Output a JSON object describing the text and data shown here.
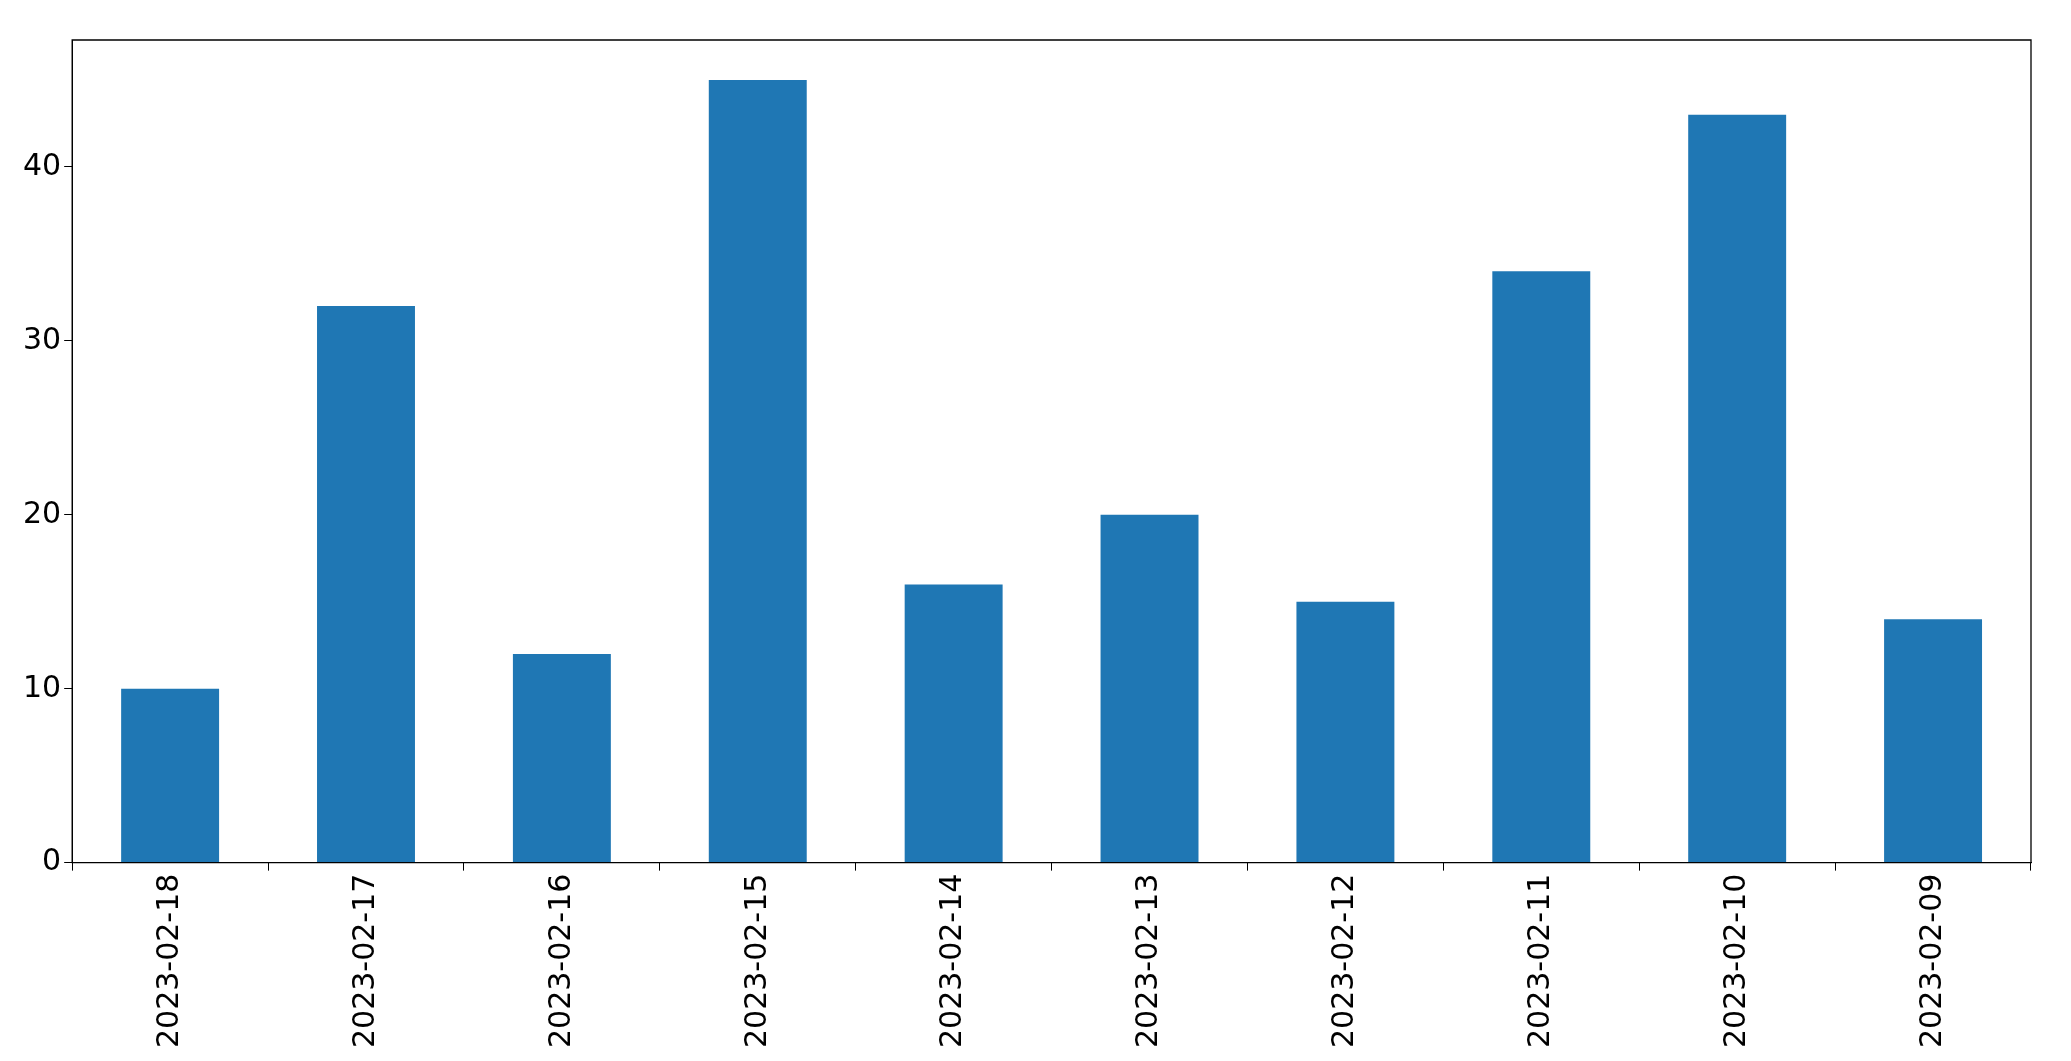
{
  "chart_data": {
    "type": "bar",
    "categories": [
      "2023-02-18",
      "2023-02-17",
      "2023-02-16",
      "2023-02-15",
      "2023-02-14",
      "2023-02-13",
      "2023-02-12",
      "2023-02-11",
      "2023-02-10",
      "2023-02-09"
    ],
    "values": [
      10,
      32,
      12,
      45,
      16,
      20,
      15,
      34,
      43,
      14
    ],
    "color": "#1f77b4",
    "ylim": [
      0,
      47.3
    ],
    "yticks": [
      0,
      10,
      20,
      30,
      40
    ],
    "grid": false,
    "legend": false
  }
}
